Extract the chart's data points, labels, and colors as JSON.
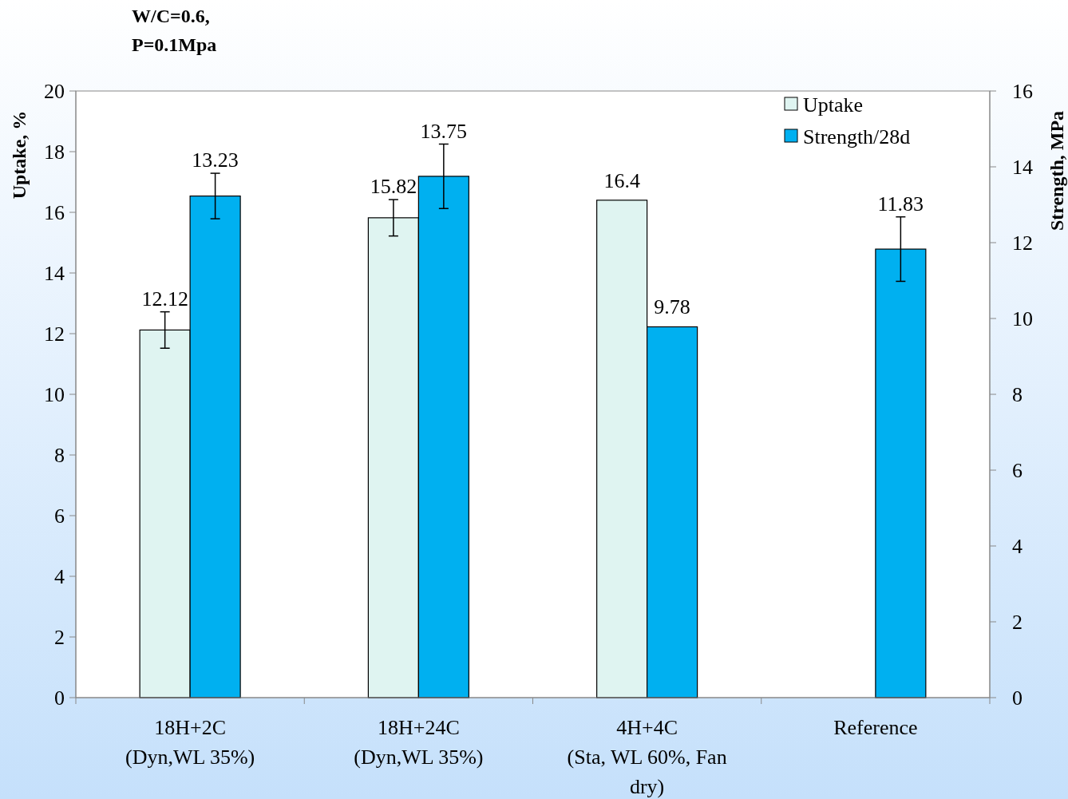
{
  "chart_data": {
    "type": "bar",
    "title": "W/C=0.6,",
    "subtitle": "P=0.1Mpa",
    "ylabel": "Uptake, %",
    "y2label": "Strength, MPa",
    "categories": [
      "18H+2C\n(Dyn,WL 35%)",
      "18H+24C\n(Dyn,WL 35%)",
      "4H+4C\n(Sta, WL 60%, Fan\ndry)",
      "Reference"
    ],
    "series": [
      {
        "name": "Uptake",
        "color": "#dff4f1",
        "values": [
          12.12,
          15.82,
          16.4,
          null
        ],
        "errors": [
          0.6,
          0.6,
          null,
          null
        ]
      },
      {
        "name": "Strength/28d",
        "color": "#00b0f0",
        "values": [
          13.23,
          13.75,
          9.78,
          11.83
        ],
        "errors": [
          0.6,
          0.85,
          null,
          0.85
        ],
        "axis": "y2"
      }
    ],
    "ylim": [
      0,
      20
    ],
    "yticks": [
      0,
      2,
      4,
      6,
      8,
      10,
      12,
      14,
      16,
      18,
      20
    ],
    "y2lim": [
      0,
      16
    ],
    "y2ticks": [
      0,
      2,
      4,
      6,
      8,
      10,
      12,
      14,
      16
    ],
    "data_labels": true,
    "legend": "top right",
    "grid": false
  }
}
